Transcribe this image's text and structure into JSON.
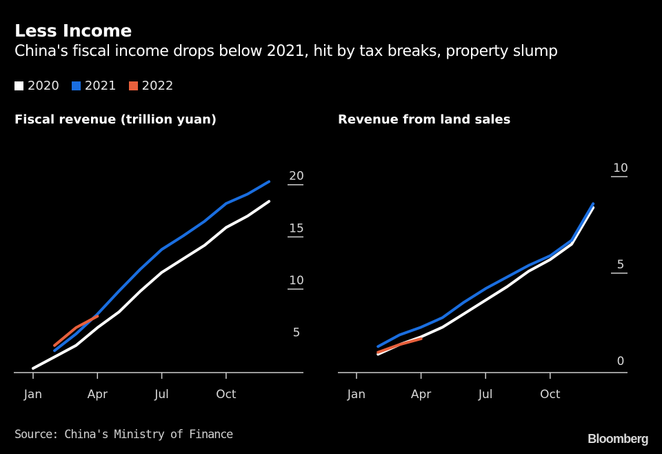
{
  "header": {
    "title": "Less Income",
    "subtitle": "China's fiscal income drops below 2021, hit by tax breaks, property slump"
  },
  "legend": [
    {
      "label": "2020",
      "color": "#ffffff"
    },
    {
      "label": "2021",
      "color": "#1a6ee0"
    },
    {
      "label": "2022",
      "color": "#e8603c"
    }
  ],
  "footer": {
    "source": "Source: China's Ministry of Finance",
    "brand": "Bloomberg"
  },
  "chart_data": [
    {
      "type": "line",
      "title": "Fiscal revenue (trillion yuan)",
      "xlabel": "",
      "ylabel": "",
      "x": [
        "Jan",
        "Feb",
        "Mar",
        "Apr",
        "May",
        "Jun",
        "Jul",
        "Aug",
        "Sep",
        "Oct",
        "Nov",
        "Dec"
      ],
      "x_tick_labels": [
        "Jan",
        "Apr",
        "Jul",
        "Oct"
      ],
      "y_ticks": [
        5,
        10,
        15,
        20
      ],
      "ylim": [
        2,
        21.5
      ],
      "y_axis_side": "right",
      "grid": false,
      "legend_position": "top-left",
      "series": [
        {
          "name": "2020",
          "color": "#ffffff",
          "values": [
            2.4,
            3.5,
            4.6,
            6.3,
            7.8,
            9.8,
            11.6,
            12.9,
            14.2,
            15.9,
            17.0,
            18.4
          ]
        },
        {
          "name": "2021",
          "color": "#1a6ee0",
          "values": [
            null,
            4.1,
            5.7,
            7.6,
            9.8,
            11.9,
            13.8,
            15.1,
            16.5,
            18.2,
            19.1,
            20.3
          ]
        },
        {
          "name": "2022",
          "color": "#e8603c",
          "values": [
            null,
            4.6,
            6.3,
            7.4,
            null,
            null,
            null,
            null,
            null,
            null,
            null,
            null
          ]
        }
      ]
    },
    {
      "type": "line",
      "title": "Revenue from land sales",
      "xlabel": "",
      "ylabel": "",
      "x": [
        "Jan",
        "Feb",
        "Mar",
        "Apr",
        "May",
        "Jun",
        "Jul",
        "Aug",
        "Sep",
        "Oct",
        "Nov",
        "Dec"
      ],
      "x_tick_labels": [
        "Jan",
        "Apr",
        "Jul",
        "Oct"
      ],
      "y_ticks": [
        0,
        5,
        10
      ],
      "ylim": [
        -0.15,
        10.5
      ],
      "y_axis_side": "right",
      "grid": false,
      "legend_position": "top-left",
      "series": [
        {
          "name": "2020",
          "color": "#ffffff",
          "values": [
            null,
            0.8,
            1.3,
            1.7,
            2.2,
            2.9,
            3.6,
            4.3,
            5.1,
            5.7,
            6.5,
            8.4
          ]
        },
        {
          "name": "2021",
          "color": "#1a6ee0",
          "values": [
            null,
            1.2,
            1.8,
            2.2,
            2.7,
            3.5,
            4.2,
            4.8,
            5.4,
            5.9,
            6.7,
            8.6
          ]
        },
        {
          "name": "2022",
          "color": "#e8603c",
          "values": [
            null,
            0.9,
            1.3,
            1.6,
            null,
            null,
            null,
            null,
            null,
            null,
            null,
            null
          ]
        }
      ]
    }
  ]
}
